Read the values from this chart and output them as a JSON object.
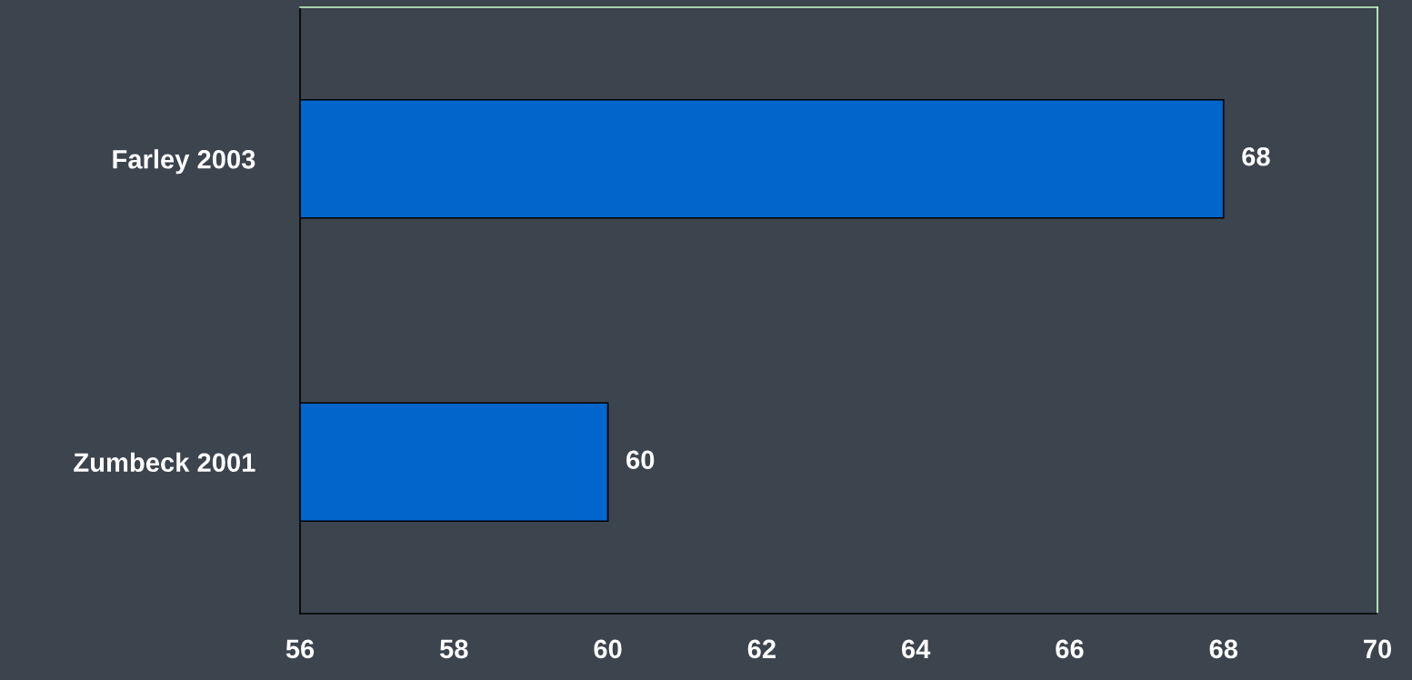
{
  "chart_data": {
    "type": "bar",
    "orientation": "horizontal",
    "categories": [
      "Farley 2003",
      "Zumbeck 2001"
    ],
    "values": [
      68,
      60
    ],
    "color": "#0066cc",
    "data_labels": true,
    "xlim": [
      56,
      70
    ],
    "xticks": [
      56,
      58,
      60,
      62,
      64,
      66,
      68,
      70
    ],
    "grid": false,
    "legend": false
  }
}
